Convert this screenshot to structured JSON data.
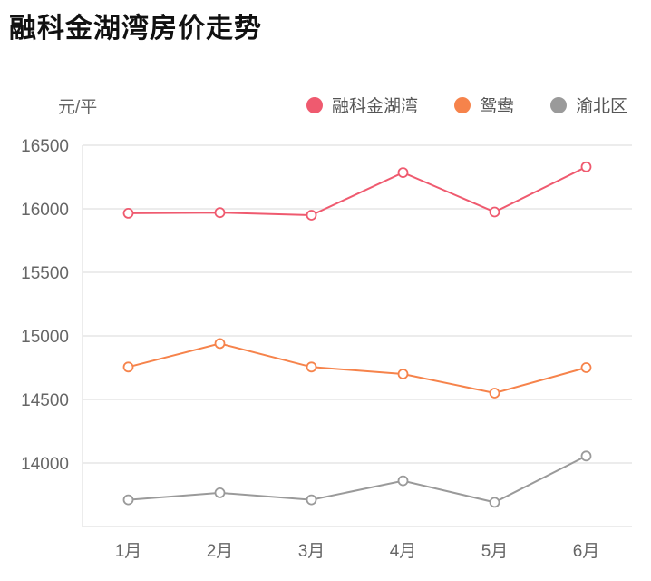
{
  "title": "融科金湖湾房价走势",
  "chart_data": {
    "type": "line",
    "title": "融科金湖湾房价走势",
    "ylabel": "元/平",
    "xlabel": "",
    "categories": [
      "1月",
      "2月",
      "3月",
      "4月",
      "5月",
      "6月"
    ],
    "ylim": [
      13500,
      16500
    ],
    "yticks": [
      14000,
      14500,
      15000,
      15500,
      16000,
      16500
    ],
    "grid": true,
    "legend_position": "top-right",
    "series": [
      {
        "name": "融科金湖湾",
        "color": "#ef5a6f",
        "values": [
          15965,
          15970,
          15950,
          16285,
          15975,
          16330
        ]
      },
      {
        "name": "鸳鸯",
        "color": "#f6834b",
        "values": [
          14755,
          14940,
          14755,
          14700,
          14550,
          14750
        ]
      },
      {
        "name": "渝北区",
        "color": "#9a9a9a",
        "values": [
          13710,
          13765,
          13710,
          13860,
          13690,
          14055
        ]
      }
    ]
  }
}
